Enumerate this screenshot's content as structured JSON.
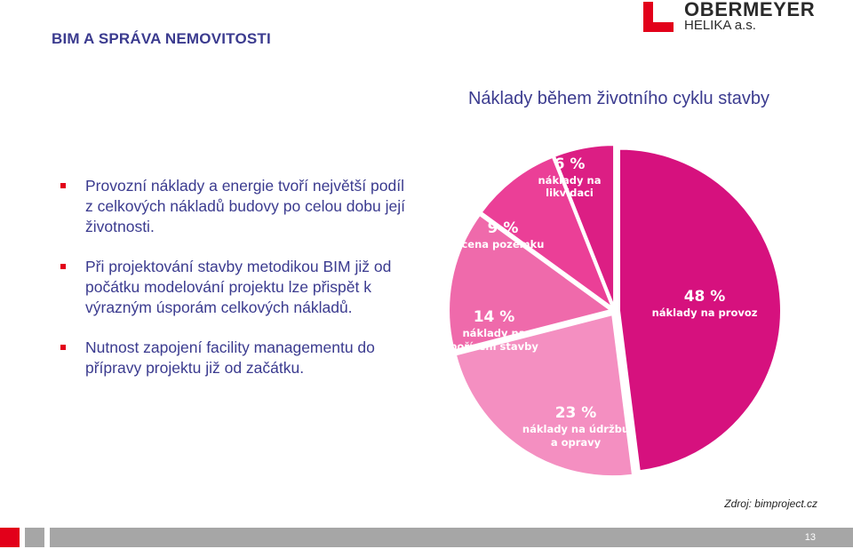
{
  "header": {
    "title": "BIM A SPRÁVA NEMOVITOSTI",
    "logo_name": "OBERMEYER",
    "logo_sub": "HELIKA a.s."
  },
  "bullets": [
    "Provozní náklady a energie tvoří největší podíl z celkových nákladů budovy po celou dobu její životnosti.",
    "Při projektování stavby metodikou BIM již od počátku modelování projektu lze přispět k výrazným úsporám celkových nákladů.",
    "Nutnost zapojení facility managementu do přípravy projektu již od začátku."
  ],
  "chart_data": {
    "type": "pie",
    "title": "Náklady během životního cyklu stavby",
    "slices": [
      {
        "value_label": "48 %",
        "label_lines": [
          "náklady na provoz"
        ],
        "value": 48,
        "color": "#d6117e"
      },
      {
        "value_label": "23 %",
        "label_lines": [
          "náklady na údržbu",
          "a opravy"
        ],
        "value": 23,
        "color": "#f48fc1"
      },
      {
        "value_label": "14 %",
        "label_lines": [
          "náklady na",
          "pořízení stavby"
        ],
        "value": 14,
        "color": "#ef6aab"
      },
      {
        "value_label": "9 %",
        "label_lines": [
          "cena pozemku"
        ],
        "value": 9,
        "color": "#eb3f97"
      },
      {
        "value_label": "6 %",
        "label_lines": [
          "náklady na",
          "likvidaci"
        ],
        "value": 6,
        "color": "#dc1e84"
      }
    ],
    "start_angle_deg": 0,
    "direction": "clockwise",
    "legend": "none"
  },
  "footer": {
    "source": "Zdroj: bimproject.cz",
    "page_number": "13"
  },
  "colors": {
    "accent_red": "#e2001a",
    "text_blue": "#3b3b8f",
    "footer_gray": "#a6a6a6"
  }
}
